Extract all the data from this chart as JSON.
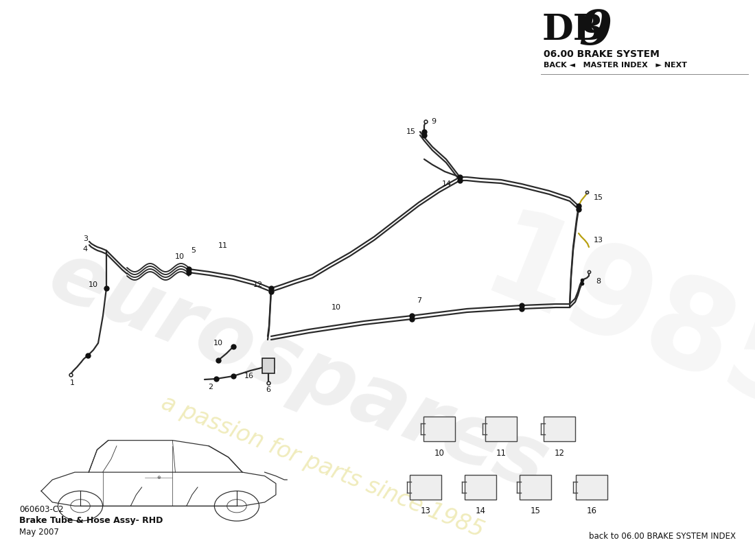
{
  "title_db9_1": "DB",
  "title_db9_2": "9",
  "title_system": "06.00 BRAKE SYSTEM",
  "nav_text": "BACK ◄   MASTER INDEX   ► NEXT",
  "part_code": "060603-C2",
  "part_name": "Brake Tube & Hose Assy- RHD",
  "date": "May 2007",
  "footer_text": "back to 06.00 BRAKE SYSTEM INDEX",
  "bg_color": "#ffffff",
  "line_color": "#2a2a2a",
  "hose_color": "#b8a010",
  "dot_color": "#111111",
  "wm_es_color": "#c8c8c8",
  "wm_slogan_color": "#d4c840",
  "wm_1985_color": "#cccccc",
  "wm_es_alpha": 0.28,
  "wm_slogan_alpha": 0.35,
  "wm_1985_alpha": 0.18,
  "car_edge_color": "#333333",
  "car_lw": 0.9
}
